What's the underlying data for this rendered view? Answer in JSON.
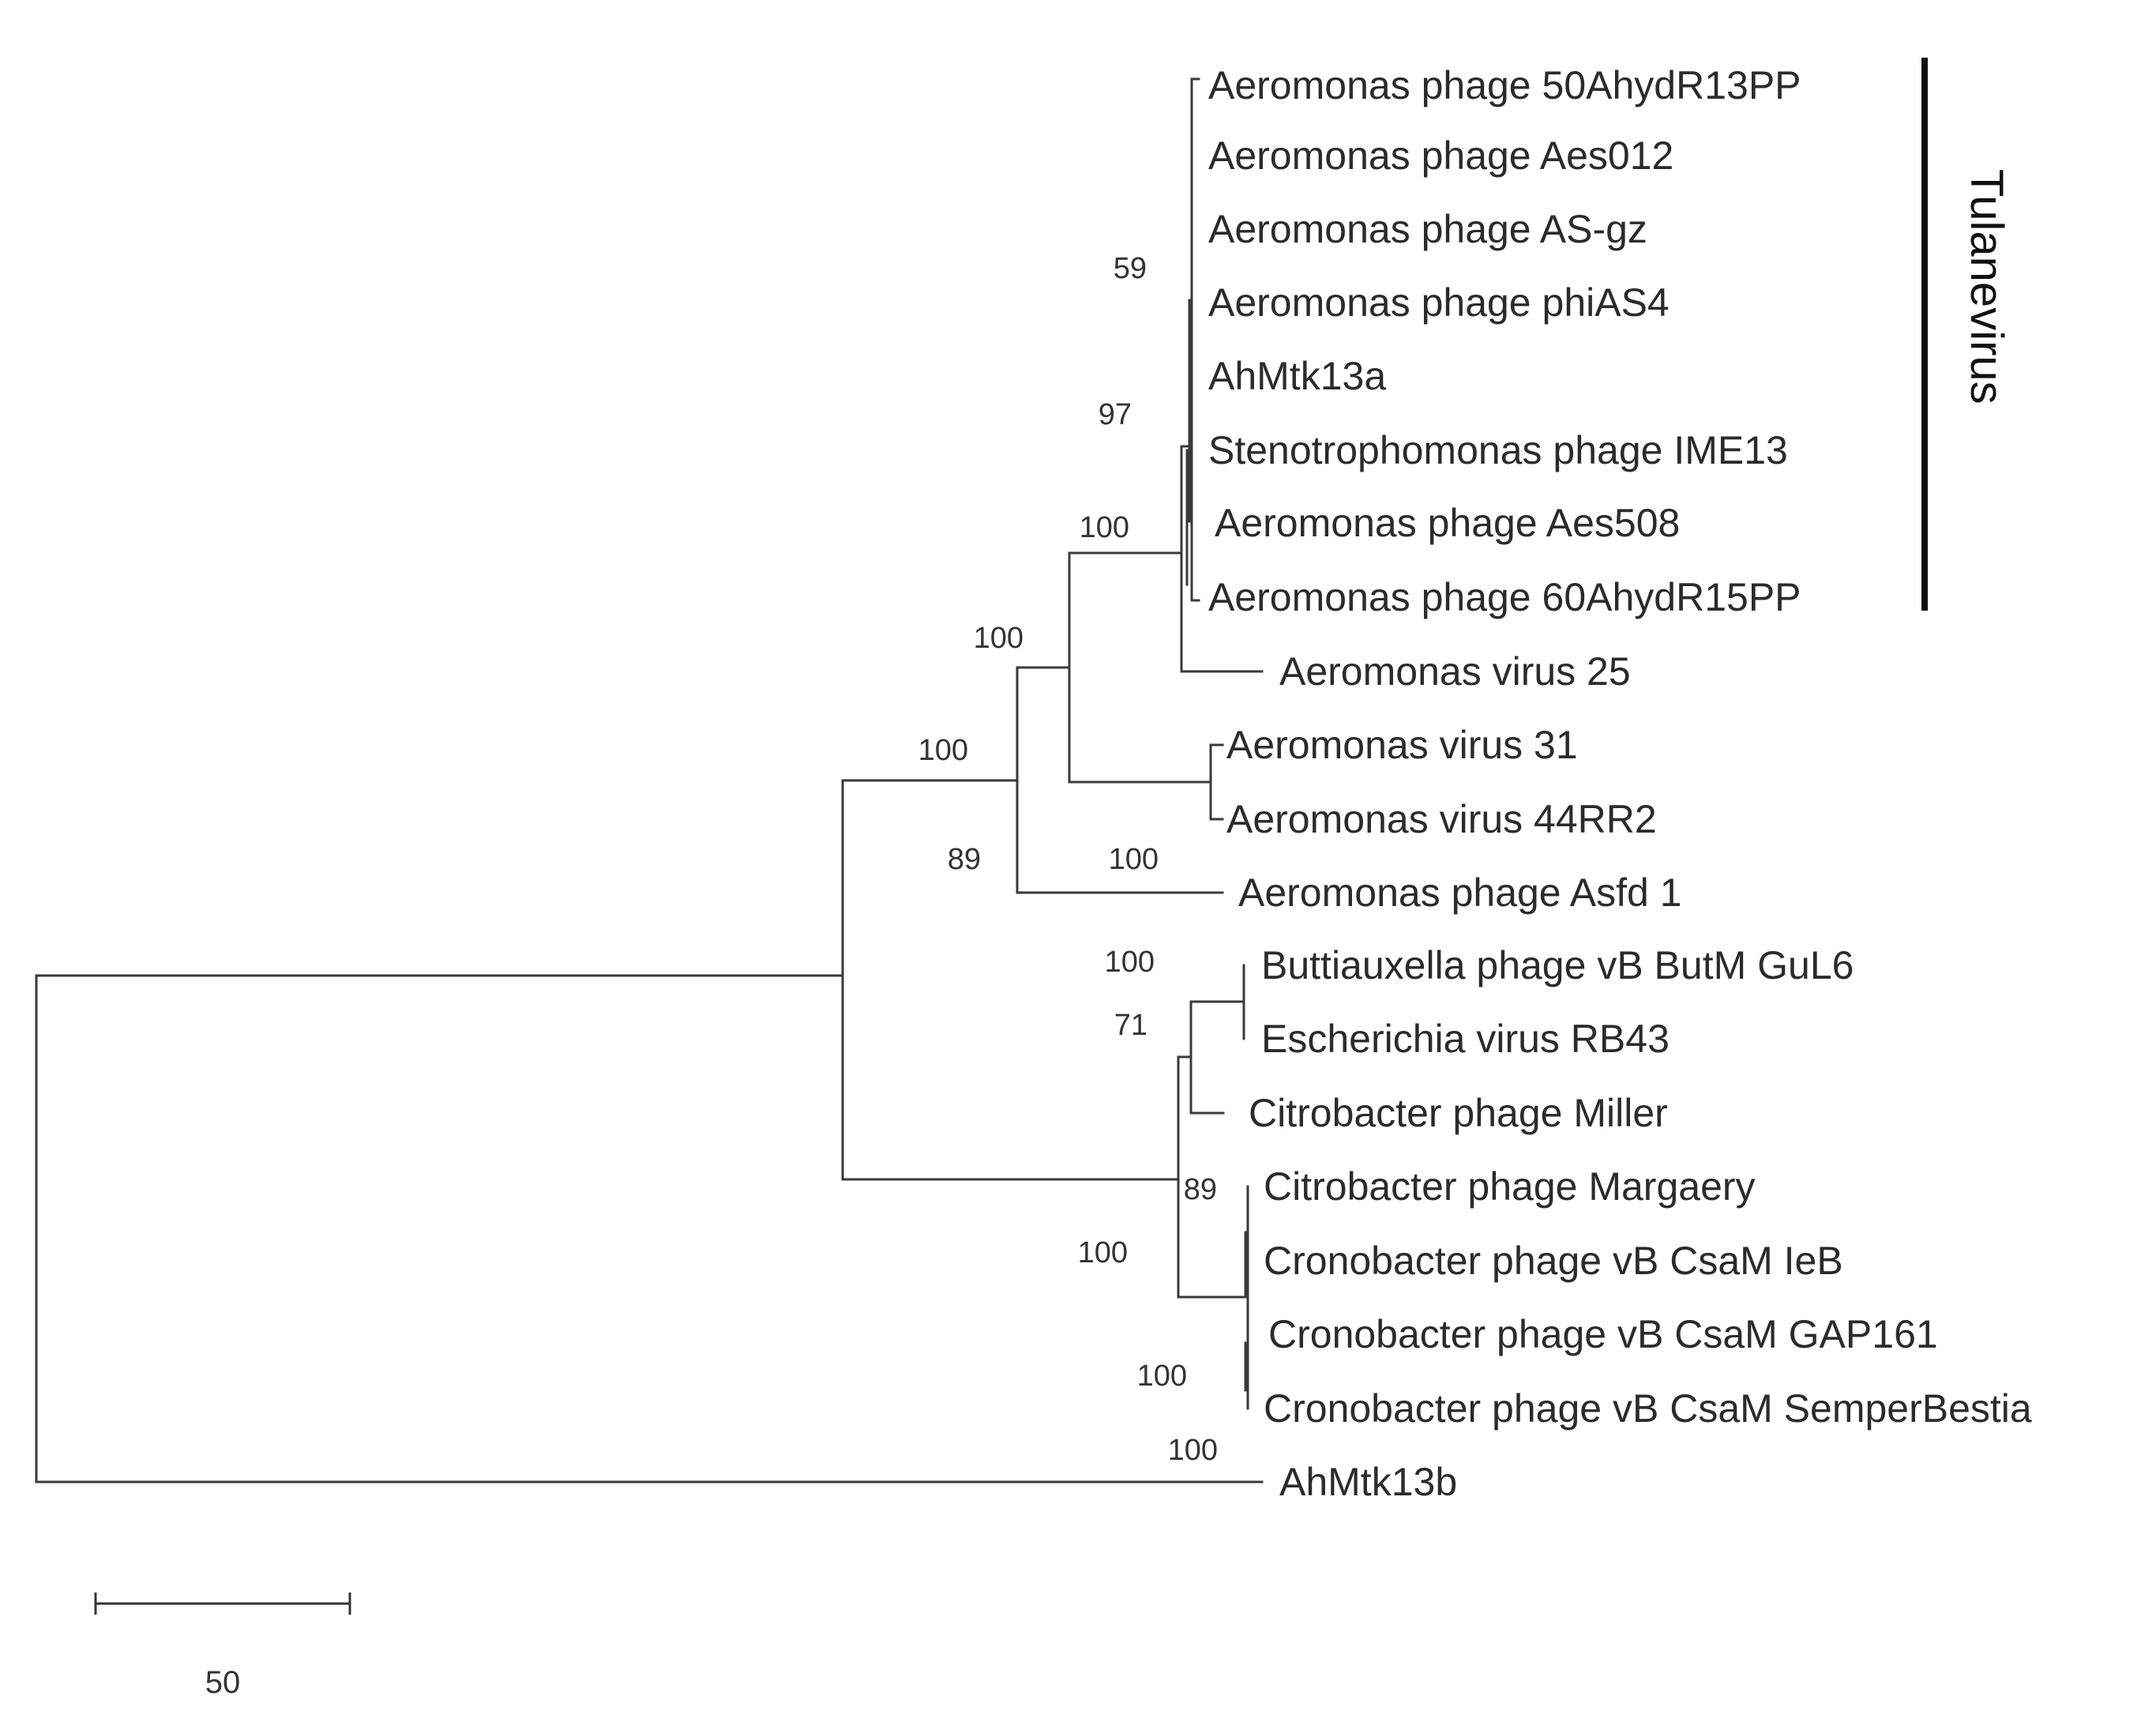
{
  "tree": {
    "leaves": [
      "Aeromonas phage 50AhydR13PP",
      "Aeromonas phage Aes012",
      "Aeromonas phage AS-gz",
      "Aeromonas phage phiAS4",
      "AhMtk13a",
      "Stenotrophomonas phage IME13",
      "Aeromonas phage Aes508",
      "Aeromonas phage 60AhydR15PP",
      "Aeromonas virus 25",
      "Aeromonas virus 31",
      "Aeromonas virus 44RR2",
      "Aeromonas phage Asfd 1",
      "Buttiauxella phage vB ButM GuL6",
      "Escherichia virus RB43",
      "Citrobacter phage Miller",
      "Citrobacter phage Margaery",
      "Cronobacter phage vB CsaM IeB",
      "Cronobacter phage vB CsaM GAP161",
      "Cronobacter phage vB CsaM SemperBestia",
      "AhMtk13b"
    ],
    "support_values": [
      "59",
      "97",
      "100",
      "100",
      "100",
      "100",
      "100",
      "71",
      "89",
      "100",
      "100",
      "100",
      "89"
    ],
    "clade_label": "Tulanevirus",
    "clade_members": [
      "Aeromonas phage 50AhydR13PP",
      "Aeromonas phage Aes012",
      "Aeromonas phage AS-gz",
      "Aeromonas phage phiAS4",
      "AhMtk13a",
      "Stenotrophomonas phage IME13",
      "Aeromonas phage Aes508",
      "Aeromonas phage 60AhydR15PP"
    ]
  },
  "scale_bar": {
    "label": "50"
  }
}
